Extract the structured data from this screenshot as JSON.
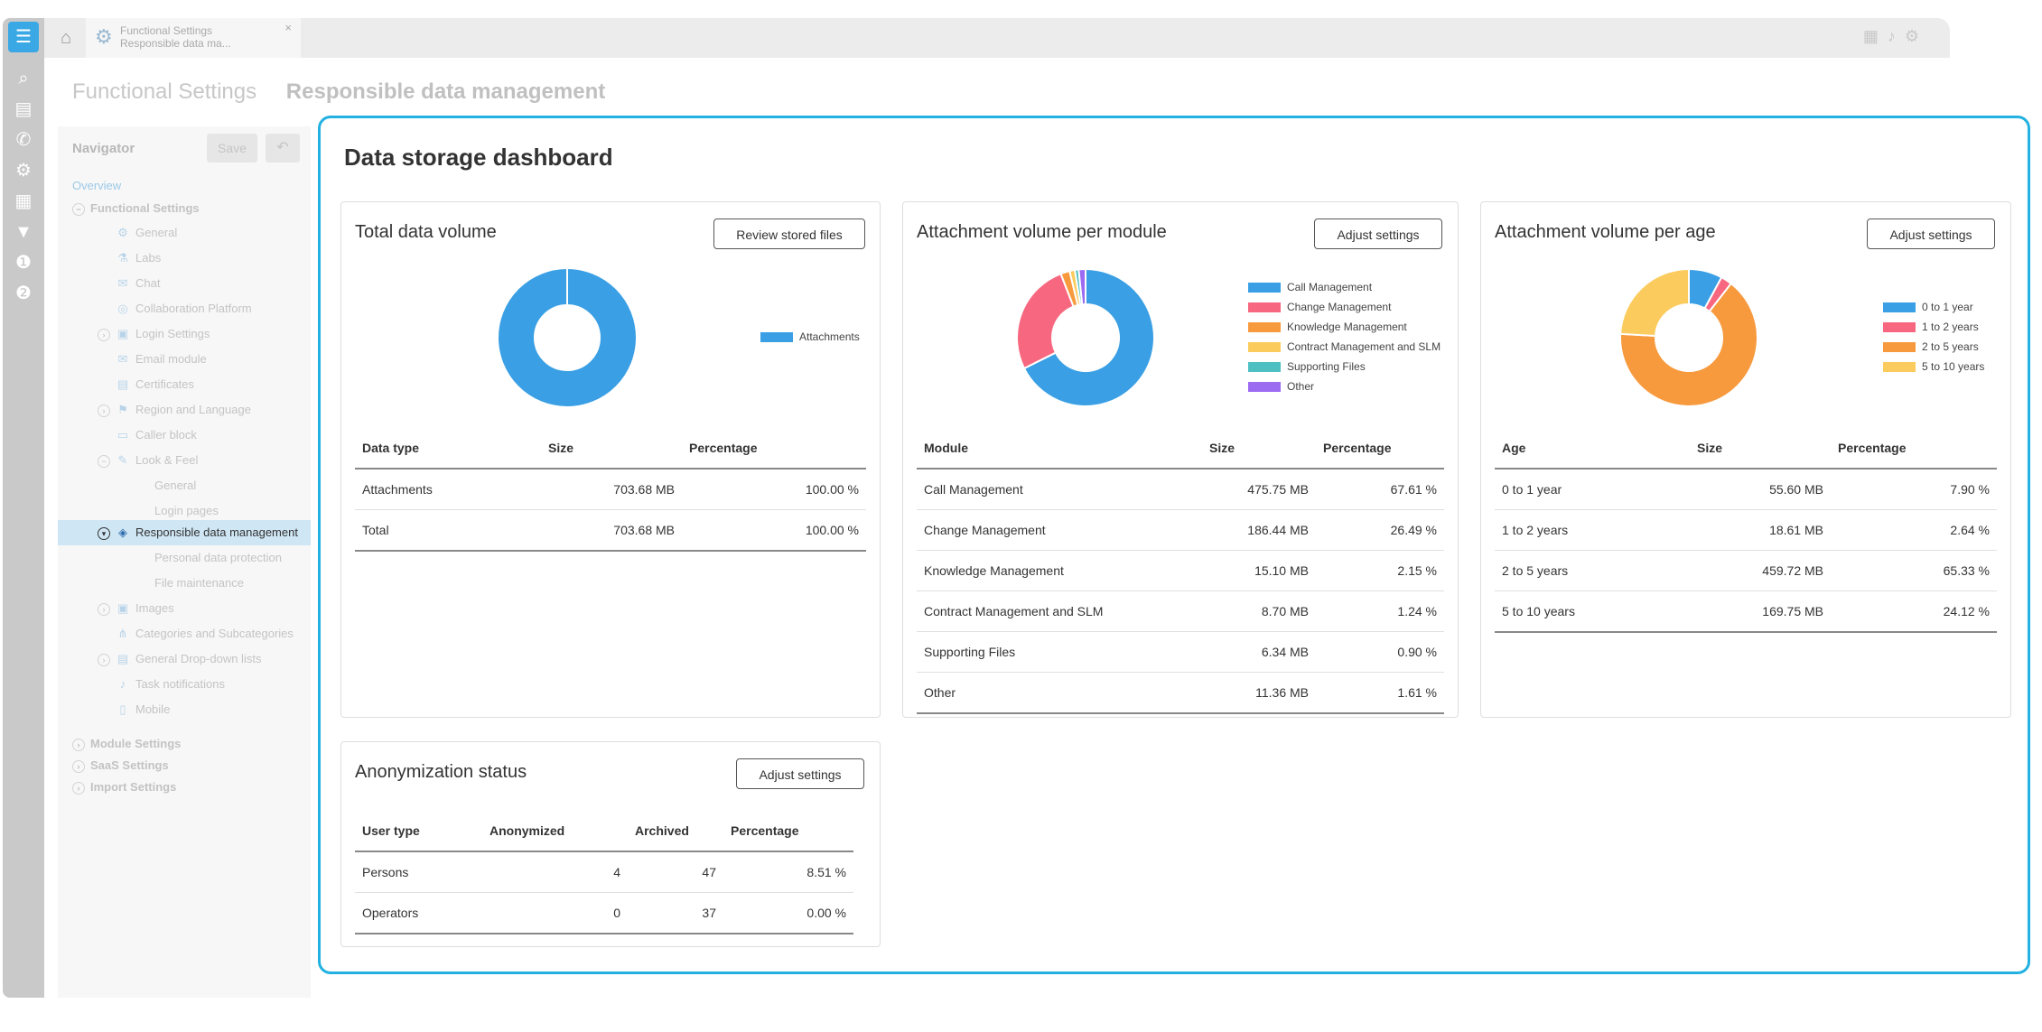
{
  "tab": {
    "line1": "Functional Settings",
    "line2": "Responsible data ma...",
    "close": "×"
  },
  "breadcrumb": {
    "section": "Functional Settings",
    "page": "Responsible data management"
  },
  "navigator": {
    "title": "Navigator",
    "save_label": "Save",
    "undo_label": "↶",
    "overview": "Overview",
    "functional_settings": "Functional Settings",
    "items": [
      "General",
      "Labs",
      "Chat",
      "Collaboration Platform",
      "Login Settings",
      "Email module",
      "Certificates",
      "Region and Language",
      "Caller block",
      "Look & Feel",
      "General",
      "Login pages",
      "Responsible data management",
      "Personal data protection",
      "File maintenance",
      "Images",
      "Categories and Subcategories",
      "General Drop-down lists",
      "Task notifications",
      "Mobile"
    ],
    "module_settings": "Module Settings",
    "saas_settings": "SaaS Settings",
    "import_settings": "Import Settings"
  },
  "dashboard": {
    "title": "Data storage dashboard",
    "total": {
      "title": "Total data volume",
      "button": "Review stored files",
      "legend": [
        "Attachments"
      ],
      "headers": [
        "Data type",
        "Size",
        "Percentage"
      ],
      "rows": [
        [
          "Attachments",
          "703.68 MB",
          "100.00 %"
        ],
        [
          "Total",
          "703.68 MB",
          "100.00 %"
        ]
      ]
    },
    "module": {
      "title": "Attachment volume per module",
      "button": "Adjust settings",
      "legend": [
        "Call Management",
        "Change Management",
        "Knowledge Management",
        "Contract Management and SLM",
        "Supporting Files",
        "Other"
      ],
      "headers": [
        "Module",
        "Size",
        "Percentage"
      ],
      "rows": [
        [
          "Call Management",
          "475.75 MB",
          "67.61 %"
        ],
        [
          "Change Management",
          "186.44 MB",
          "26.49 %"
        ],
        [
          "Knowledge Management",
          "15.10 MB",
          "2.15 %"
        ],
        [
          "Contract Management and SLM",
          "8.70 MB",
          "1.24 %"
        ],
        [
          "Supporting Files",
          "6.34 MB",
          "0.90 %"
        ],
        [
          "Other",
          "11.36 MB",
          "1.61 %"
        ]
      ]
    },
    "age": {
      "title": "Attachment volume per age",
      "button": "Adjust settings",
      "legend": [
        "0 to 1 year",
        "1 to 2 years",
        "2 to 5 years",
        "5 to 10 years"
      ],
      "headers": [
        "Age",
        "Size",
        "Percentage"
      ],
      "rows": [
        [
          "0 to 1 year",
          "55.60 MB",
          "7.90 %"
        ],
        [
          "1 to 2 years",
          "18.61 MB",
          "2.64 %"
        ],
        [
          "2 to 5 years",
          "459.72 MB",
          "65.33 %"
        ],
        [
          "5 to 10 years",
          "169.75 MB",
          "24.12 %"
        ]
      ]
    },
    "anonymization": {
      "title": "Anonymization status",
      "button": "Adjust settings",
      "headers": [
        "User type",
        "Anonymized",
        "Archived",
        "Percentage"
      ],
      "rows": [
        [
          "Persons",
          "4",
          "47",
          "8.51 %"
        ],
        [
          "Operators",
          "0",
          "37",
          "0.00 %"
        ]
      ]
    }
  },
  "chart_data": [
    {
      "type": "pie",
      "donut": true,
      "categories": [
        "Attachments"
      ],
      "values": [
        100.0
      ],
      "colors": [
        "#3a9fe4"
      ]
    },
    {
      "type": "pie",
      "donut": true,
      "categories": [
        "Call Management",
        "Change Management",
        "Knowledge Management",
        "Contract Management and SLM",
        "Supporting Files",
        "Other"
      ],
      "values": [
        67.61,
        26.49,
        2.15,
        1.24,
        0.9,
        1.61
      ],
      "colors": [
        "#3a9fe4",
        "#f7677f",
        "#f79a3e",
        "#fbcb5d",
        "#4ec0c1",
        "#9b6bf2"
      ]
    },
    {
      "type": "pie",
      "donut": true,
      "categories": [
        "0 to 1 year",
        "1 to 2 years",
        "2 to 5 years",
        "5 to 10 years"
      ],
      "values": [
        7.9,
        2.64,
        65.33,
        24.12
      ],
      "colors": [
        "#3a9fe4",
        "#f7677f",
        "#f79a3e",
        "#fbcb5d"
      ]
    }
  ]
}
